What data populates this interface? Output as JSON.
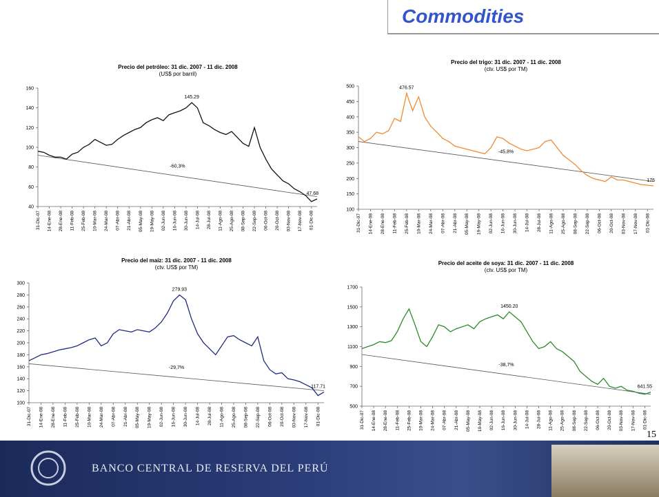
{
  "header": {
    "title": "Commodities"
  },
  "page_number": "15",
  "footer": {
    "institution": "BANCO CENTRAL DE RESERVA DEL PERÚ"
  },
  "chart_data": [
    {
      "type": "line",
      "title": "Precio del petróleo: 31 dic. 2007 - 11 dic. 2008",
      "subtitle": "(US$ por barril)",
      "color": "#111111",
      "categories": [
        "31-Dic-07",
        null,
        "14-Ene-08",
        null,
        "28-Ene-08",
        null,
        "11-Feb-08",
        null,
        "25-Feb-08",
        null,
        "10-Mar-08",
        null,
        "24-Mar-08",
        null,
        "07-Abr-08",
        null,
        "21-Abr-08",
        null,
        "05-May-08",
        null,
        "19-May-08",
        null,
        "02-Jun-08",
        null,
        "16-Jun-08",
        null,
        "30-Jun-08",
        null,
        "14-Jul-08",
        null,
        "28-Jul-08",
        null,
        "11-Ago-08",
        null,
        "25-Ago-08",
        null,
        "08-Sep-08",
        null,
        "22-Sep-08",
        null,
        "06-Oct-08",
        null,
        "20-Oct-08",
        null,
        "03-Nov-08",
        null,
        "17-Nov-08",
        null,
        "01-Dic-08",
        null
      ],
      "values": [
        96,
        95,
        92,
        90,
        90,
        88,
        93,
        95,
        100,
        103,
        108,
        105,
        102,
        103,
        108,
        112,
        115,
        118,
        120,
        125,
        128,
        130,
        127,
        133,
        135,
        137,
        140,
        145.29,
        140,
        125,
        122,
        118,
        115,
        113,
        116,
        110,
        104,
        101,
        120,
        100,
        88,
        78,
        72,
        66,
        63,
        58,
        55,
        51,
        45,
        47.68
      ],
      "labeled_points": [
        27,
        49
      ],
      "trend": {
        "values": [
          92,
          50
        ],
        "label": "-60,3%"
      },
      "ylim": [
        40,
        160
      ],
      "yticks": [
        40,
        60,
        80,
        100,
        120,
        140,
        160
      ]
    },
    {
      "type": "line",
      "title": "Precio del trigo: 31 dic. 2007 - 11 dic. 2008",
      "subtitle": "(ctv. US$ por TM)",
      "color": "#f08a30",
      "categories": [
        "31-Dic-07",
        null,
        "14-Ene-08",
        null,
        "28-Ene-08",
        null,
        "11-Feb-08",
        null,
        "25-Feb-08",
        null,
        "10-Mar-08",
        null,
        "24-Mar-08",
        null,
        "07-Abr-08",
        null,
        "21-Abr-08",
        null,
        "05-May-08",
        null,
        "19-May-08",
        null,
        "02-Jun-08",
        null,
        "16-Jun-08",
        null,
        "30-Jun-08",
        null,
        "14-Jul-08",
        null,
        "28-Jul-08",
        null,
        "11-Ago-08",
        null,
        "25-Ago-08",
        null,
        "08-Sep-08",
        null,
        "22-Sep-08",
        null,
        "06-Oct-08",
        null,
        "20-Oct-08",
        null,
        "03-Nov-08",
        null,
        "17-Nov-08",
        null,
        "01-Dic-08",
        null
      ],
      "values": [
        335,
        320,
        330,
        350,
        345,
        355,
        395,
        385,
        476.57,
        420,
        465,
        400,
        370,
        350,
        330,
        320,
        305,
        300,
        295,
        290,
        285,
        280,
        300,
        335,
        330,
        315,
        305,
        295,
        290,
        295,
        300,
        320,
        325,
        300,
        275,
        260,
        245,
        225,
        210,
        200,
        195,
        190,
        205,
        195,
        195,
        190,
        185,
        180,
        178,
        176
      ],
      "labeled_points": [
        8,
        49
      ],
      "trend": {
        "values": [
          320,
          190
        ],
        "label": "-45,8%"
      },
      "ylim": [
        100,
        500
      ],
      "yticks": [
        100,
        150,
        200,
        250,
        300,
        350,
        400,
        450,
        500
      ]
    },
    {
      "type": "line",
      "title": "Precio del maíz: 31 dic. 2007 - 11 dic. 2008",
      "subtitle": "(ctv. US$ por TM)",
      "color": "#1f2a80",
      "categories": [
        "31-Dic-07",
        null,
        "14-Ene-08",
        null,
        "28-Ene-08",
        null,
        "11-Feb-08",
        null,
        "25-Feb-08",
        null,
        "10-Mar-08",
        null,
        "24-Mar-08",
        null,
        "07-Abr-08",
        null,
        "21-Abr-08",
        null,
        "05-May-08",
        null,
        "19-May-08",
        null,
        "02-Jun-08",
        null,
        "16-Jun-08",
        null,
        "30-Jun-08",
        null,
        "14-Jul-08",
        null,
        "28-Jul-08",
        null,
        "11-Ago-08",
        null,
        "25-Ago-08",
        null,
        "08-Sep-08",
        null,
        "22-Sep-08",
        null,
        "06-Oct-08",
        null,
        "20-Oct-08",
        null,
        "03-Nov-08",
        null,
        "17-Nov-08",
        null,
        "01-Dic-08",
        null
      ],
      "values": [
        170,
        175,
        180,
        182,
        185,
        188,
        190,
        192,
        195,
        200,
        205,
        208,
        195,
        200,
        215,
        222,
        220,
        218,
        222,
        220,
        218,
        225,
        235,
        250,
        270,
        279.93,
        272,
        240,
        215,
        200,
        190,
        180,
        195,
        210,
        212,
        205,
        200,
        195,
        210,
        170,
        155,
        148,
        150,
        140,
        138,
        135,
        130,
        125,
        112,
        117.71
      ],
      "labeled_points": [
        25,
        49
      ],
      "trend": {
        "values": [
          165,
          120
        ],
        "label": "-29,7%"
      },
      "ylim": [
        100,
        300
      ],
      "yticks": [
        100,
        120,
        140,
        160,
        180,
        200,
        220,
        240,
        260,
        280,
        300
      ]
    },
    {
      "type": "line",
      "title": "Precio del aceite de soya: 31 dic. 2007 - 11 dic. 2008",
      "subtitle": "(ctv. US$ por TM)",
      "color": "#2a8a2a",
      "categories": [
        "31-Dic-07",
        null,
        "14-Ene-08",
        null,
        "28-Ene-08",
        null,
        "11-Feb-08",
        null,
        "25-Feb-08",
        null,
        "10-Mar-08",
        null,
        "24-Mar-08",
        null,
        "07-Abr-08",
        null,
        "21-Abr-08",
        null,
        "05-May-08",
        null,
        "19-May-08",
        null,
        "02-Jun-08",
        null,
        "16-Jun-08",
        null,
        "30-Jun-08",
        null,
        "14-Jul-08",
        null,
        "28-Jul-08",
        null,
        "11-Ago-08",
        null,
        "25-Ago-08",
        null,
        "08-Sep-08",
        null,
        "22-Sep-08",
        null,
        "06-Oct-08",
        null,
        "20-Oct-08",
        null,
        "03-Nov-08",
        null,
        "17-Nov-08",
        null,
        "01-Dic-08",
        null
      ],
      "values": [
        1080,
        1100,
        1120,
        1150,
        1140,
        1160,
        1250,
        1380,
        1480,
        1320,
        1150,
        1100,
        1200,
        1320,
        1300,
        1250,
        1280,
        1300,
        1320,
        1280,
        1350,
        1380,
        1400,
        1420,
        1380,
        1450.2,
        1400,
        1350,
        1250,
        1150,
        1080,
        1100,
        1150,
        1080,
        1050,
        1000,
        950,
        850,
        800,
        750,
        720,
        780,
        700,
        680,
        700,
        660,
        650,
        630,
        620,
        641.55
      ],
      "value_labels": [
        null,
        null,
        null,
        null,
        null,
        null,
        null,
        null,
        null,
        null,
        null,
        null,
        null,
        null,
        null,
        null,
        null,
        null,
        null,
        null,
        null,
        null,
        null,
        null,
        null,
        "1450.20",
        null,
        null,
        null,
        null,
        null,
        null,
        null,
        null,
        null,
        null,
        null,
        null,
        null,
        null,
        null,
        null,
        null,
        null,
        null,
        null,
        null,
        null,
        null,
        null
      ],
      "labeled_points": [
        25,
        49
      ],
      "trend": {
        "values": [
          1020,
          620
        ],
        "label": "-38,7%"
      },
      "ylim": [
        500,
        1700
      ],
      "yticks": [
        500,
        700,
        900,
        1100,
        1300,
        1500,
        1700
      ]
    }
  ]
}
